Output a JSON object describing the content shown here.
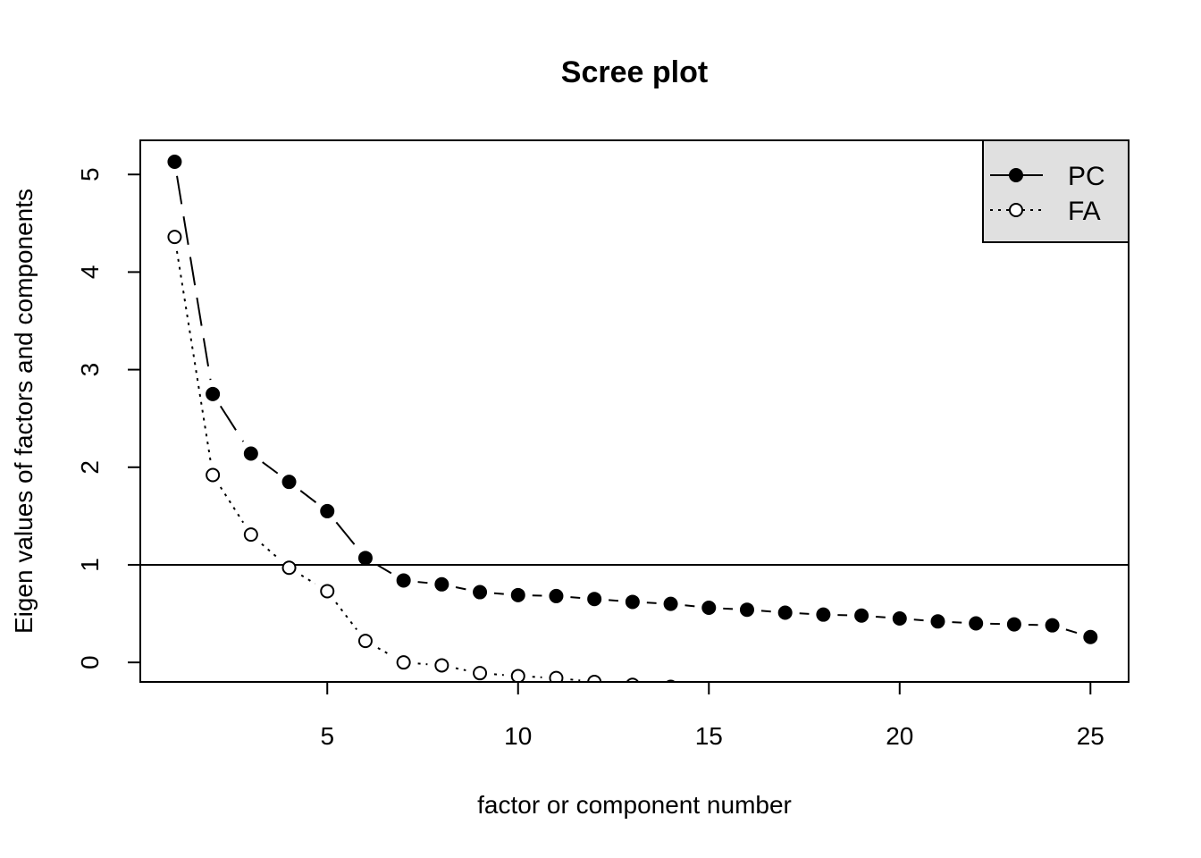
{
  "chart_data": {
    "type": "line",
    "title": "Scree plot",
    "xlabel": "factor or component number",
    "ylabel": "Eigen values of factors and components",
    "xlim": [
      0.1,
      26.0
    ],
    "ylim": [
      -0.2,
      5.35
    ],
    "xticks": [
      5,
      10,
      15,
      20,
      25
    ],
    "yticks": [
      0,
      1,
      2,
      3,
      4,
      5
    ],
    "reference_line": 1,
    "grid": false,
    "legend_position": "top-right",
    "series": [
      {
        "name": "PC",
        "marker": "filled-circle",
        "line_style": "dashed",
        "x": [
          1,
          2,
          3,
          4,
          5,
          6,
          7,
          8,
          9,
          10,
          11,
          12,
          13,
          14,
          15,
          16,
          17,
          18,
          19,
          20,
          21,
          22,
          23,
          24,
          25
        ],
        "values": [
          5.13,
          2.75,
          2.14,
          1.85,
          1.55,
          1.07,
          0.84,
          0.8,
          0.72,
          0.69,
          0.68,
          0.65,
          0.62,
          0.6,
          0.56,
          0.54,
          0.51,
          0.49,
          0.48,
          0.45,
          0.42,
          0.4,
          0.39,
          0.38,
          0.26
        ]
      },
      {
        "name": "FA",
        "marker": "open-circle",
        "line_style": "dotted",
        "x": [
          1,
          2,
          3,
          4,
          5,
          6,
          7,
          8,
          9,
          10,
          11,
          12,
          13,
          14,
          15
        ],
        "values": [
          4.36,
          1.92,
          1.31,
          0.97,
          0.73,
          0.22,
          0.0,
          -0.03,
          -0.11,
          -0.14,
          -0.16,
          -0.2,
          -0.23,
          -0.25,
          -0.28
        ]
      }
    ],
    "colors": {
      "legend_text": "#228B22",
      "legend_bg": "#e0e0e0",
      "ink": "#000000"
    }
  }
}
